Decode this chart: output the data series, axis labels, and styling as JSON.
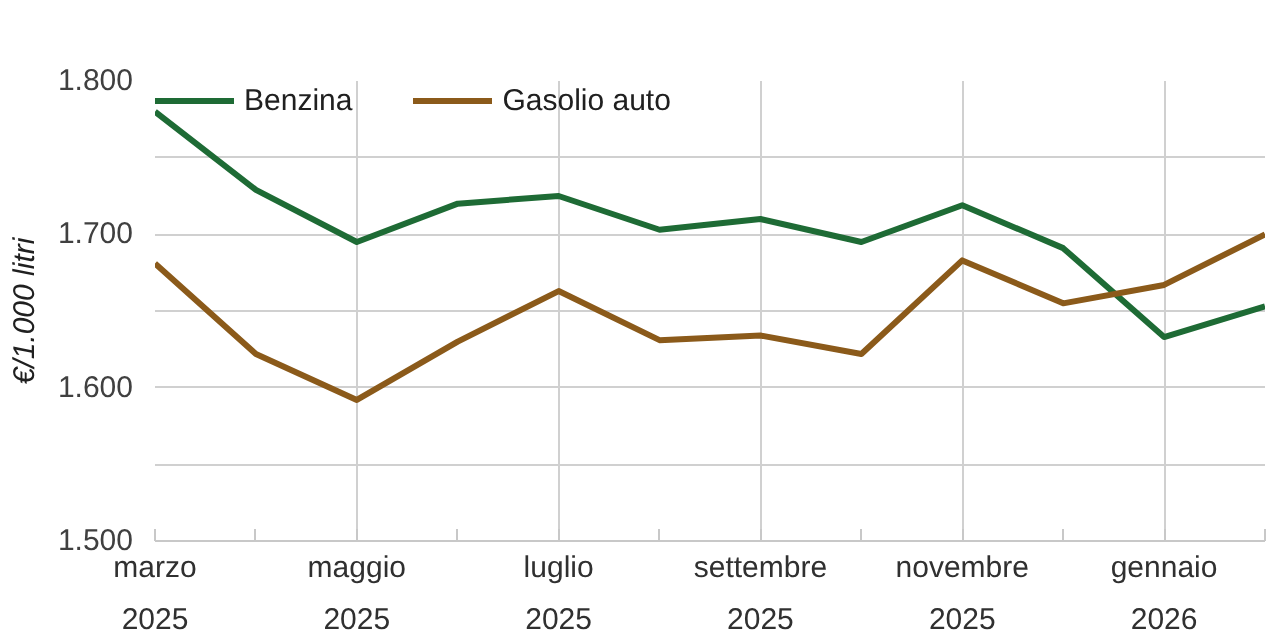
{
  "chart_data": {
    "type": "line",
    "ylabel": "€/1.000 litri",
    "categories": [
      "marzo\n2025",
      null,
      "maggio\n2025",
      null,
      "luglio\n2025",
      null,
      "settembre\n2025",
      null,
      "novembre\n2025",
      null,
      "gennaio\n2026",
      null
    ],
    "series": [
      {
        "name": "Benzina",
        "color": "#1e6b35",
        "values": [
          1.78,
          1.729,
          1.695,
          1.72,
          1.725,
          1.703,
          1.71,
          1.695,
          1.719,
          1.691,
          1.633,
          1.653
        ]
      },
      {
        "name": "Gasolio auto",
        "color": "#8b5a1a",
        "values": [
          1.681,
          1.622,
          1.592,
          1.63,
          1.663,
          1.631,
          1.634,
          1.622,
          1.683,
          1.655,
          1.667,
          1.7
        ]
      }
    ],
    "ylim": [
      1.5,
      1.8
    ],
    "yticks": [
      {
        "value": 1.5,
        "label": "1.500"
      },
      {
        "value": 1.55,
        "label": null
      },
      {
        "value": 1.6,
        "label": "1.600"
      },
      {
        "value": 1.65,
        "label": null
      },
      {
        "value": 1.7,
        "label": "1.700"
      },
      {
        "value": 1.75,
        "label": null
      },
      {
        "value": 1.8,
        "label": "1.800"
      }
    ],
    "grid": true,
    "legend": "top",
    "marker": "none",
    "line_style": "solid"
  }
}
